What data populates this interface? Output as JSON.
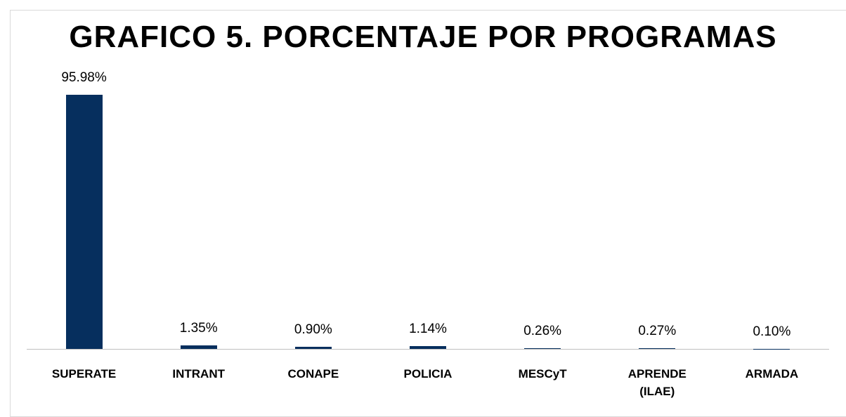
{
  "chart_data": {
    "type": "bar",
    "title": "GRAFICO 5. PORCENTAJE POR PROGRAMAS",
    "categories": [
      "SUPERATE",
      "INTRANT",
      "CONAPE",
      "POLICIA",
      "MESCyT",
      "APRENDE (ILAE)",
      "ARMADA"
    ],
    "values": [
      95.98,
      1.35,
      0.9,
      1.14,
      0.26,
      0.27,
      0.1
    ],
    "value_labels": [
      "95.98%",
      "1.35%",
      "0.90%",
      "1.14%",
      "0.26%",
      "0.27%",
      "0.10%"
    ],
    "color": "#062f5e"
  }
}
